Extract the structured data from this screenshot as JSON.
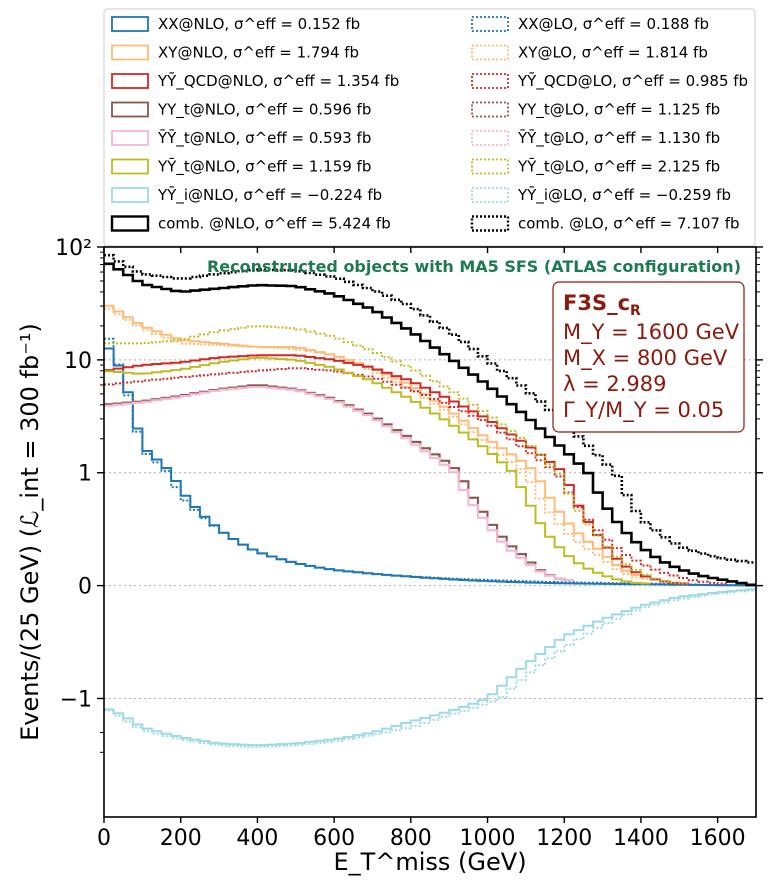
{
  "chart_data": {
    "type": "line",
    "style": "step histogram",
    "xlabel": "E_T^miss (GeV)",
    "ylabel": "Events/(25 GeV) (ℒ_int = 300 fb⁻¹)",
    "subtitle": "Reconstructed objects with MA5 SFS (ATLAS configuration)",
    "y_scale": "symlog",
    "xlim": [
      0,
      1700
    ],
    "x_ticks": [
      0,
      200,
      400,
      600,
      800,
      1000,
      1200,
      1400,
      1600
    ],
    "x_tick_labels": [
      "0",
      "200",
      "400",
      "600",
      "800",
      "1000",
      "1200",
      "1400",
      "1600"
    ],
    "y_ticks": [
      -1,
      0,
      1,
      10,
      100
    ],
    "y_tick_labels": [
      "−1",
      "0",
      "1",
      "10",
      "10²"
    ],
    "bin_width": 25,
    "annotation": {
      "title": "F3S_c",
      "title_sub": "R",
      "lines": [
        "M_Y = 1600 GeV",
        "M_X = 800 GeV",
        "λ = 2.989",
        "Γ_Y/M_Y = 0.05"
      ]
    },
    "legend": [
      {
        "label": "XX@NLO, σ^eff = 0.152 fb",
        "color": "#1f77b4",
        "dashed": false
      },
      {
        "label": "XX@LO, σ^eff = 0.188 fb",
        "color": "#1f77b4",
        "dashed": true
      },
      {
        "label": "XY@NLO, σ^eff = 1.794 fb",
        "color": "#ffbb78",
        "dashed": false
      },
      {
        "label": "XY@LO, σ^eff = 1.814 fb",
        "color": "#ffbb78",
        "dashed": true
      },
      {
        "label": "YȲ_QCD@NLO, σ^eff = 1.354 fb",
        "color": "#d62728",
        "dashed": false
      },
      {
        "label": "YȲ_QCD@LO, σ^eff = 0.985 fb",
        "color": "#d62728",
        "dashed": true
      },
      {
        "label": "YY_t@NLO, σ^eff = 0.596 fb",
        "color": "#8c564b",
        "dashed": false
      },
      {
        "label": "YY_t@LO, σ^eff = 1.125 fb",
        "color": "#8c564b",
        "dashed": true
      },
      {
        "label": "ȲȲ_t@NLO, σ^eff = 0.593 fb",
        "color": "#f7b6d2",
        "dashed": false
      },
      {
        "label": "ȲȲ_t@LO, σ^eff = 1.130 fb",
        "color": "#f7b6d2",
        "dashed": true
      },
      {
        "label": "YȲ_t@NLO, σ^eff = 1.159 fb",
        "color": "#bcbd22",
        "dashed": false
      },
      {
        "label": "YȲ_t@LO, σ^eff = 2.125 fb",
        "color": "#bcbd22",
        "dashed": true
      },
      {
        "label": "YȲ_i@NLO, σ^eff = −0.224 fb",
        "color": "#9edae5",
        "dashed": false
      },
      {
        "label": "YȲ_i@LO, σ^eff = −0.259 fb",
        "color": "#9edae5",
        "dashed": true
      },
      {
        "label": "comb. @NLO, σ^eff = 5.424 fb",
        "color": "#000000",
        "dashed": false
      },
      {
        "label": "comb. @LO, σ^eff = 7.107 fb",
        "color": "#000000",
        "dashed": true
      }
    ],
    "series": [
      {
        "name": "XX@NLO",
        "color": "#1f77b4",
        "dashed": false,
        "x": [
          0,
          50,
          100,
          200,
          300,
          400,
          500,
          600,
          800,
          1000,
          1200,
          1700
        ],
        "y": [
          15,
          7.5,
          1.7,
          0.85,
          0.5,
          0.3,
          0.2,
          0.14,
          0.08,
          0.04,
          0.02,
          0.0
        ]
      },
      {
        "name": "XX@LO",
        "color": "#1f77b4",
        "dashed": true,
        "x": [
          0,
          50,
          100,
          200,
          300,
          400,
          500,
          600,
          800,
          1000,
          1200,
          1700
        ],
        "y": [
          20,
          7.0,
          1.6,
          0.8,
          0.5,
          0.3,
          0.2,
          0.14,
          0.08,
          0.05,
          0.03,
          0.0
        ]
      },
      {
        "name": "XY@NLO",
        "color": "#ffbb78",
        "dashed": false,
        "x": [
          0,
          100,
          200,
          300,
          400,
          500,
          600,
          700,
          800,
          900,
          1000,
          1100,
          1200,
          1300,
          1400
        ],
        "y": [
          32,
          20,
          15,
          14,
          13,
          13,
          11,
          8.5,
          6,
          3.6,
          2.0,
          1.2,
          0.6,
          0.3,
          0.08
        ]
      },
      {
        "name": "XY@LO",
        "color": "#ffbb78",
        "dashed": true,
        "x": [
          0,
          100,
          200,
          300,
          400,
          500,
          600,
          700,
          800,
          900,
          1000,
          1100,
          1200,
          1300,
          1400
        ],
        "y": [
          30,
          19,
          14,
          13.5,
          13,
          12.5,
          11,
          8,
          5.5,
          3.4,
          1.8,
          1.0,
          0.5,
          0.25,
          0.06
        ]
      },
      {
        "name": "YYbar_QCD@NLO",
        "color": "#d62728",
        "dashed": false,
        "x": [
          0,
          100,
          200,
          300,
          400,
          500,
          600,
          700,
          800,
          900,
          1000,
          1100,
          1200,
          1300,
          1400,
          1500
        ],
        "y": [
          8,
          9,
          9.5,
          10.5,
          11,
          11,
          10,
          8.5,
          6.5,
          4.5,
          3.0,
          1.8,
          1.0,
          0.4,
          0.1,
          0.02
        ]
      },
      {
        "name": "YYbar_QCD@LO",
        "color": "#d62728",
        "dashed": true,
        "x": [
          0,
          100,
          200,
          300,
          400,
          500,
          600,
          700,
          800,
          900,
          1000,
          1100,
          1200,
          1300,
          1400,
          1500,
          1600
        ],
        "y": [
          6,
          6.5,
          7,
          7.5,
          8,
          8.5,
          8,
          7,
          5.5,
          4.0,
          2.8,
          1.6,
          0.9,
          0.45,
          0.2,
          0.08,
          0.02
        ]
      },
      {
        "name": "YY_t@NLO",
        "color": "#8c564b",
        "dashed": false,
        "x": [
          0,
          100,
          200,
          300,
          400,
          500,
          600,
          700,
          800,
          900,
          1000,
          1100,
          1200
        ],
        "y": [
          4,
          4.3,
          4.8,
          5.5,
          6,
          5.5,
          4.5,
          3.2,
          2.0,
          1.2,
          0.6,
          0.25,
          0.05
        ]
      },
      {
        "name": "YY_t@LO",
        "color": "#8c564b",
        "dashed": true,
        "x": [
          0,
          100,
          200,
          300,
          400,
          500,
          600,
          700,
          800,
          900,
          1000,
          1100,
          1200
        ],
        "y": [
          4,
          4.3,
          4.8,
          5.5,
          6,
          5.5,
          4.5,
          3.2,
          2.0,
          1.2,
          0.6,
          0.25,
          0.05
        ]
      },
      {
        "name": "YbarYbar_t@NLO",
        "color": "#f7b6d2",
        "dashed": false,
        "x": [
          0,
          100,
          200,
          300,
          400,
          500,
          600,
          700,
          800,
          900,
          1000,
          1100,
          1200
        ],
        "y": [
          3.9,
          4.2,
          4.7,
          5.4,
          5.8,
          5.4,
          4.4,
          3.1,
          1.9,
          1.1,
          0.55,
          0.22,
          0.05
        ]
      },
      {
        "name": "YbarYbar_t@LO",
        "color": "#f7b6d2",
        "dashed": true,
        "x": [
          0,
          100,
          200,
          300,
          400,
          500,
          600,
          700,
          800,
          900,
          1000,
          1100,
          1200
        ],
        "y": [
          3.9,
          4.2,
          4.7,
          5.4,
          5.8,
          5.4,
          4.4,
          3.1,
          1.9,
          1.1,
          0.55,
          0.22,
          0.05
        ]
      },
      {
        "name": "YYbar_t@NLO",
        "color": "#bcbd22",
        "dashed": false,
        "x": [
          0,
          100,
          200,
          300,
          400,
          500,
          600,
          700,
          800,
          900,
          1000,
          1100,
          1200,
          1300,
          1400
        ],
        "y": [
          8,
          7.5,
          8.2,
          9.5,
          10.5,
          10,
          8.5,
          6.5,
          4.5,
          2.8,
          1.6,
          0.8,
          0.3,
          0.1,
          0.02
        ]
      },
      {
        "name": "YYbar_t@LO",
        "color": "#bcbd22",
        "dashed": true,
        "x": [
          0,
          100,
          200,
          300,
          400,
          500,
          600,
          700,
          800,
          900,
          1000,
          1100,
          1200,
          1300,
          1400,
          1500
        ],
        "y": [
          14,
          14,
          15,
          18,
          20,
          19,
          16,
          12,
          8.5,
          5.5,
          3.3,
          1.9,
          0.9,
          0.4,
          0.12,
          0.02
        ]
      },
      {
        "name": "YYbar_i@NLO",
        "color": "#9edae5",
        "dashed": false,
        "x": [
          0,
          50,
          100,
          200,
          300,
          400,
          500,
          600,
          700,
          800,
          900,
          1000,
          1100,
          1200,
          1300,
          1400,
          1500,
          1600,
          1700
        ],
        "y": [
          -1.2,
          -1.4,
          -1.8,
          -2.2,
          -2.5,
          -2.6,
          -2.5,
          -2.3,
          -2.0,
          -1.6,
          -1.3,
          -1.0,
          -0.7,
          -0.45,
          -0.3,
          -0.18,
          -0.1,
          -0.06,
          -0.03
        ]
      },
      {
        "name": "YYbar_i@LO",
        "color": "#9edae5",
        "dashed": true,
        "x": [
          0,
          50,
          100,
          200,
          300,
          400,
          500,
          600,
          700,
          800,
          900,
          1000,
          1100,
          1200,
          1300,
          1400,
          1500,
          1600,
          1700
        ],
        "y": [
          -1.2,
          -1.5,
          -1.9,
          -2.3,
          -2.6,
          -2.7,
          -2.6,
          -2.4,
          -2.1,
          -1.8,
          -1.4,
          -1.1,
          -0.8,
          -0.55,
          -0.35,
          -0.2,
          -0.12,
          -0.07,
          -0.04
        ]
      },
      {
        "name": "comb.@NLO",
        "color": "#000000",
        "dashed": false,
        "x": [
          0,
          50,
          100,
          200,
          300,
          400,
          500,
          600,
          700,
          800,
          900,
          1000,
          1100,
          1200,
          1300,
          1400,
          1500,
          1600,
          1700
        ],
        "y": [
          75,
          60,
          47,
          40,
          43,
          46,
          45,
          38,
          28,
          18,
          10.5,
          6.0,
          3.2,
          1.6,
          0.75,
          0.35,
          0.15,
          0.06,
          0.0
        ]
      },
      {
        "name": "comb.@LO",
        "color": "#000000",
        "dashed": true,
        "x": [
          0,
          50,
          100,
          200,
          300,
          400,
          500,
          600,
          700,
          800,
          900,
          1000,
          1100,
          1200,
          1300,
          1400,
          1500,
          1600,
          1700
        ],
        "y": [
          90,
          70,
          58,
          52,
          58,
          63,
          62,
          54,
          42,
          30,
          18,
          10,
          5.5,
          2.8,
          1.3,
          0.6,
          0.35,
          0.25,
          0.2
        ]
      }
    ]
  }
}
